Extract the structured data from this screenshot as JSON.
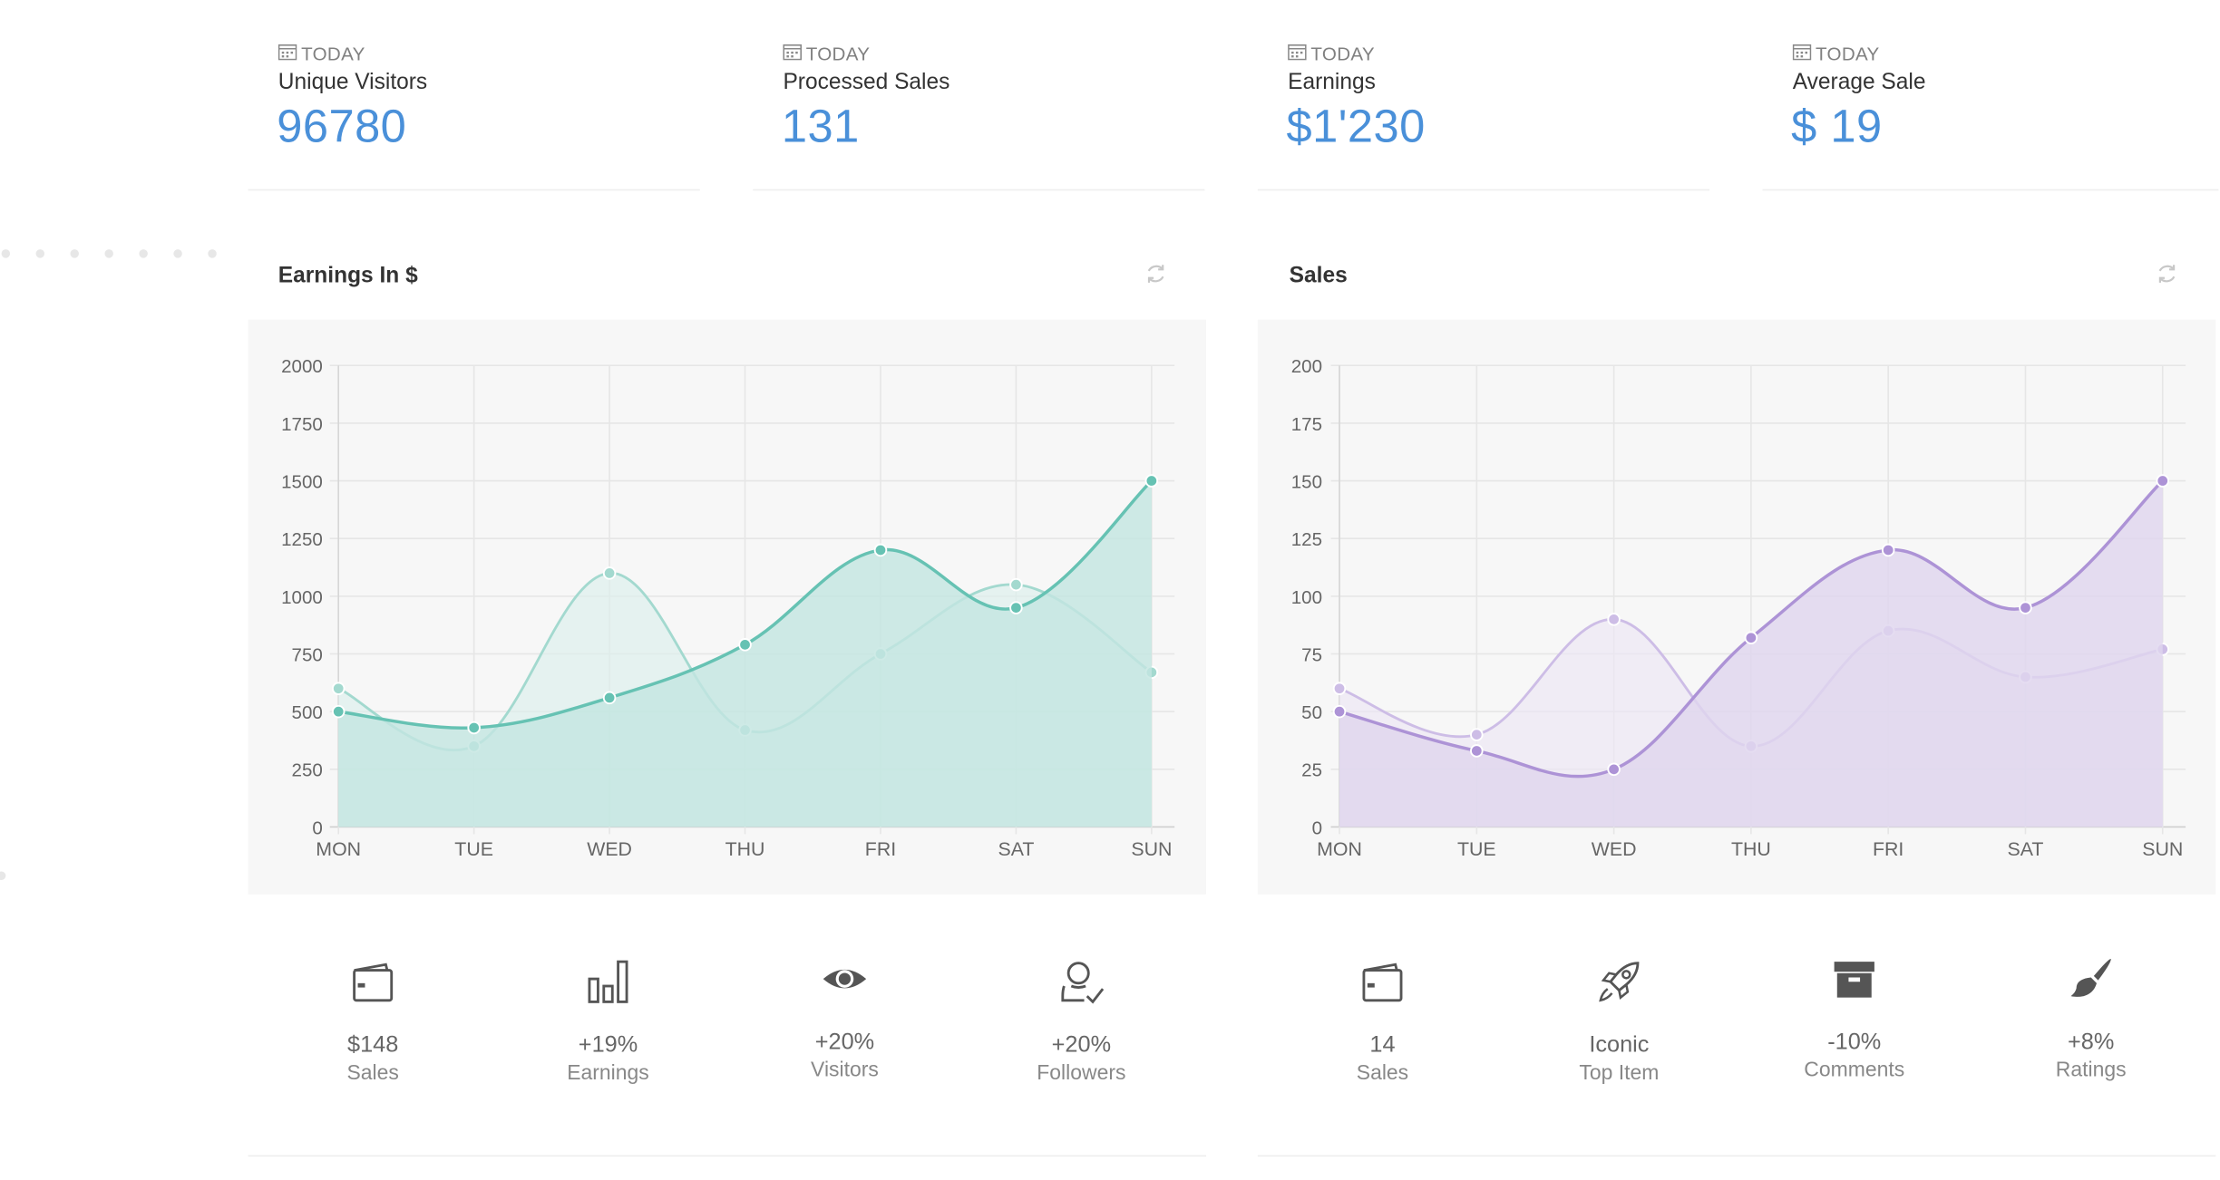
{
  "stats": [
    {
      "period": "TODAY",
      "label": "Unique Visitors",
      "value": "96780"
    },
    {
      "period": "TODAY",
      "label": "Processed Sales",
      "value": "131"
    },
    {
      "period": "TODAY",
      "label": "Earnings",
      "value": "$1'230"
    },
    {
      "period": "TODAY",
      "label": "Average Sale",
      "value": "$ 19"
    }
  ],
  "chart_data": [
    {
      "type": "area",
      "title": "Earnings In $",
      "categories": [
        "MON",
        "TUE",
        "WED",
        "THU",
        "FRI",
        "SAT",
        "SUN"
      ],
      "ylim": [
        0,
        2000
      ],
      "yticks": [
        0,
        250,
        500,
        750,
        1000,
        1250,
        1500,
        1750,
        2000
      ],
      "grid": true,
      "series": [
        {
          "values": [
            500,
            430,
            560,
            790,
            1200,
            950,
            1500
          ]
        },
        {
          "values": [
            600,
            350,
            1100,
            420,
            750,
            1050,
            670
          ]
        }
      ],
      "colors": {
        "primary": "#66c2b3",
        "primary_fill": "#c3e5e0",
        "secondary": "#a3d9cf",
        "secondary_fill": "#dbefec"
      }
    },
    {
      "type": "area",
      "title": "Sales",
      "categories": [
        "MON",
        "TUE",
        "WED",
        "THU",
        "FRI",
        "SAT",
        "SUN"
      ],
      "ylim": [
        0,
        200
      ],
      "yticks": [
        0,
        25,
        50,
        75,
        100,
        125,
        150,
        175,
        200
      ],
      "grid": true,
      "series": [
        {
          "values": [
            50,
            33,
            25,
            82,
            120,
            95,
            150
          ]
        },
        {
          "values": [
            60,
            40,
            90,
            35,
            85,
            65,
            77
          ]
        }
      ],
      "colors": {
        "primary": "#ad93d6",
        "primary_fill": "#dfd5ee",
        "secondary": "#cdbde6",
        "secondary_fill": "#ece6f5"
      }
    }
  ],
  "metrics_left": [
    {
      "icon": "wallet-icon",
      "value": "$148",
      "label": "Sales"
    },
    {
      "icon": "bar-chart-icon",
      "value": "+19%",
      "label": "Earnings"
    },
    {
      "icon": "eye-icon",
      "value": "+20%",
      "label": "Visitors"
    },
    {
      "icon": "user-check-icon",
      "value": "+20%",
      "label": "Followers"
    }
  ],
  "metrics_right": [
    {
      "icon": "wallet-icon",
      "value": "14",
      "label": "Sales"
    },
    {
      "icon": "rocket-icon",
      "value": "Iconic",
      "label": "Top Item"
    },
    {
      "icon": "archive-icon",
      "value": "-10%",
      "label": "Comments"
    },
    {
      "icon": "brush-icon",
      "value": "+8%",
      "label": "Ratings"
    }
  ]
}
